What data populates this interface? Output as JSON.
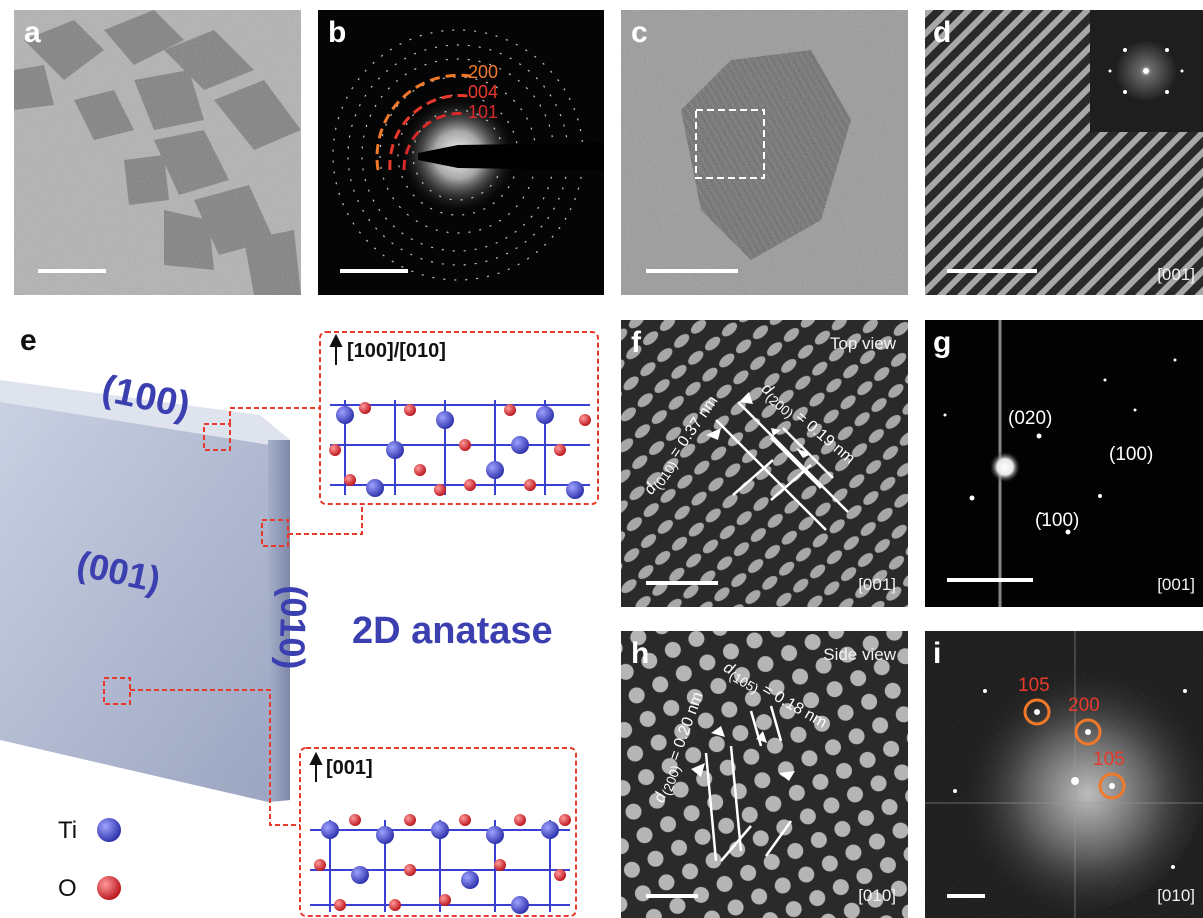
{
  "panels": {
    "a": {
      "label": "a"
    },
    "b": {
      "label": "b",
      "rings": [
        "200",
        "004",
        "101"
      ],
      "ring_color": "#ff5a3a"
    },
    "c": {
      "label": "c"
    },
    "d": {
      "label": "d",
      "zone_axis": "[001]"
    },
    "e": {
      "label": "e",
      "title": "2D anatase",
      "face_top": "(100)",
      "face_front": "(001)",
      "face_side": "(010)",
      "inset_top_axis": "[100]/[010]",
      "inset_bottom_axis": "[001]",
      "legend": [
        {
          "name": "Ti",
          "color": "#3b3fd1"
        },
        {
          "name": "O",
          "color": "#e0202a"
        }
      ],
      "title_color": "#3b3fb0",
      "box_color": "#e8392c"
    },
    "f": {
      "label": "f",
      "view": "Top view",
      "zone_axis": "[001]",
      "d1": {
        "d": "d",
        "sub": "(010)",
        "value": " = 0.37 nm"
      },
      "d2": {
        "d": "d",
        "sub": "(200)",
        "value": " = 0.19 nm"
      }
    },
    "g": {
      "label": "g",
      "spots": [
        "(020)",
        "(100)",
        "(̄100)"
      ],
      "zone_axis": "[001]"
    },
    "h": {
      "label": "h",
      "view": "Side view",
      "zone_axis": "[010]",
      "d1": {
        "d": "d",
        "sub": "(200)",
        "value": " = 0.20 nm"
      },
      "d2": {
        "d": "d",
        "sub": "(105)",
        "value": " = 0.18 nm"
      }
    },
    "i": {
      "label": "i",
      "spots": [
        "105",
        "200",
        "105"
      ],
      "zone_axis": "[010]",
      "circle_color": "#f07a2a"
    }
  }
}
